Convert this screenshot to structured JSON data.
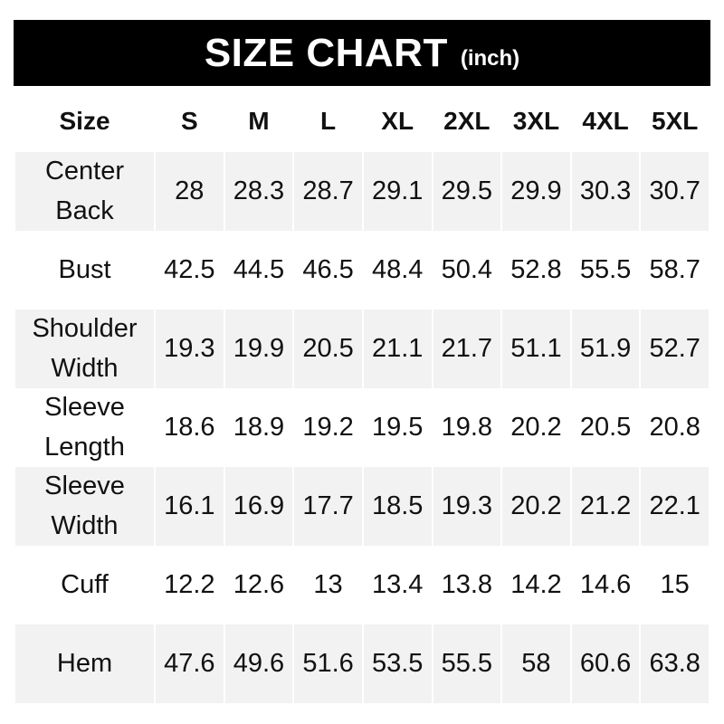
{
  "title": {
    "main": "SIZE CHART",
    "unit": "(inch)"
  },
  "table": {
    "header": [
      "Size",
      "S",
      "M",
      "L",
      "XL",
      "2XL",
      "3XL",
      "4XL",
      "5XL"
    ],
    "rows": [
      {
        "label": [
          "Center",
          "Back"
        ],
        "values": [
          "28",
          "28.3",
          "28.7",
          "29.1",
          "29.5",
          "29.9",
          "30.3",
          "30.7"
        ]
      },
      {
        "label": [
          "Bust"
        ],
        "values": [
          "42.5",
          "44.5",
          "46.5",
          "48.4",
          "50.4",
          "52.8",
          "55.5",
          "58.7"
        ]
      },
      {
        "label": [
          "Shoulder",
          "Width"
        ],
        "values": [
          "19.3",
          "19.9",
          "20.5",
          "21.1",
          "21.7",
          "51.1",
          "51.9",
          "52.7"
        ]
      },
      {
        "label": [
          "Sleeve",
          "Length"
        ],
        "values": [
          "18.6",
          "18.9",
          "19.2",
          "19.5",
          "19.8",
          "20.2",
          "20.5",
          "20.8"
        ]
      },
      {
        "label": [
          "Sleeve",
          "Width"
        ],
        "values": [
          "16.1",
          "16.9",
          "17.7",
          "18.5",
          "19.3",
          "20.2",
          "21.2",
          "22.1"
        ]
      },
      {
        "label": [
          "Cuff"
        ],
        "values": [
          "12.2",
          "12.6",
          "13",
          "13.4",
          "13.8",
          "14.2",
          "14.6",
          "15"
        ]
      },
      {
        "label": [
          "Hem"
        ],
        "values": [
          "47.6",
          "49.6",
          "51.6",
          "53.5",
          "55.5",
          "58",
          "60.6",
          "63.8"
        ]
      }
    ]
  },
  "colors": {
    "title_bg": "#000000",
    "shaded_row": "#f2f2f2"
  }
}
